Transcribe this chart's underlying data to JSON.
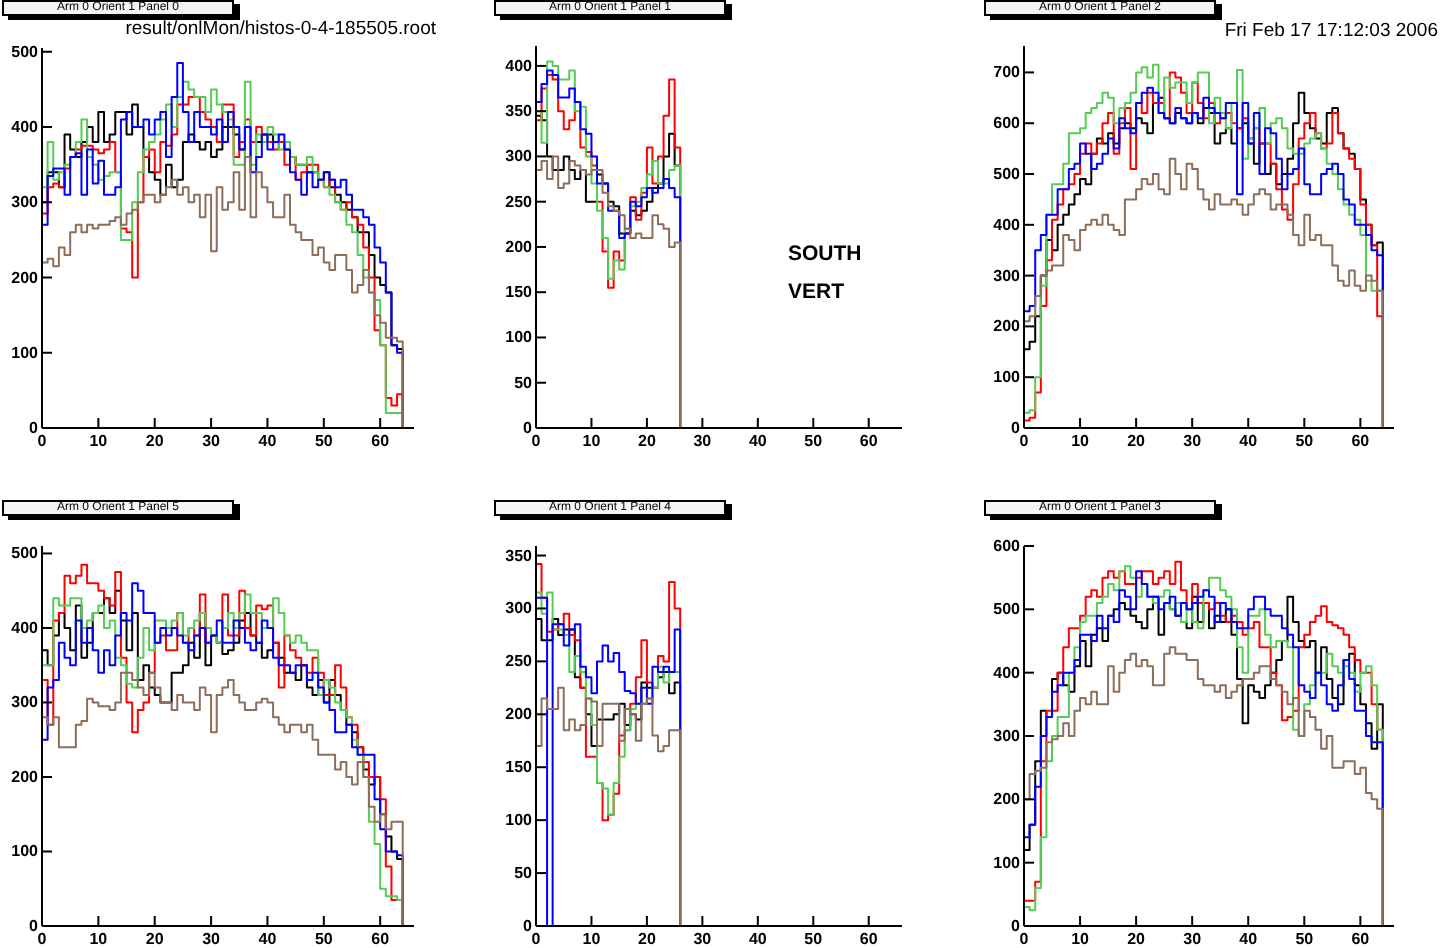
{
  "chart_data": [
    {
      "type": "histogram",
      "title": "Arm 0 Orient 1 Panel 0",
      "annotations": [
        "result/onlMon/histos-0-4-185505.root"
      ],
      "bins": [
        0,
        1,
        2,
        3,
        4,
        5,
        6,
        7,
        8,
        9,
        10,
        11,
        12,
        13,
        14,
        15,
        16,
        17,
        18,
        19,
        20,
        21,
        22,
        23,
        24,
        25,
        26,
        27,
        28,
        29,
        30,
        31,
        32,
        33,
        34,
        35,
        36,
        37,
        38,
        39,
        40,
        41,
        42,
        43,
        44,
        45,
        46,
        47,
        48,
        49,
        50,
        51,
        52,
        53,
        54,
        55,
        56,
        57,
        58,
        59,
        60,
        61,
        62,
        63,
        64
      ],
      "xlim": [
        0,
        66
      ],
      "xticks": [
        0,
        10,
        20,
        30,
        40,
        50,
        60
      ],
      "ylim": [
        0,
        505
      ],
      "yticks": [
        0,
        100,
        200,
        300,
        400,
        500
      ],
      "series": [
        {
          "color": "#000000",
          "values": [
            300,
            340,
            340,
            320,
            390,
            370,
            360,
            380,
            400,
            380,
            420,
            380,
            390,
            420,
            420,
            390,
            430,
            400,
            360,
            340,
            330,
            310,
            350,
            320,
            330,
            380,
            390,
            380,
            370,
            380,
            360,
            370,
            400,
            400,
            390,
            370,
            360,
            380,
            380,
            390,
            390,
            380,
            380,
            370,
            360,
            350,
            350,
            340,
            340,
            330,
            340,
            320,
            310,
            300,
            290,
            280,
            260,
            260,
            230,
            200,
            190,
            180,
            110,
            105
          ]
        },
        {
          "color": "#ff0000",
          "values": [
            285,
            320,
            325,
            320,
            345,
            360,
            370,
            375,
            375,
            370,
            365,
            370,
            380,
            340,
            265,
            260,
            200,
            300,
            360,
            370,
            340,
            380,
            375,
            390,
            430,
            430,
            440,
            440,
            420,
            410,
            400,
            380,
            430,
            430,
            360,
            380,
            410,
            380,
            400,
            390,
            380,
            370,
            380,
            350,
            360,
            330,
            340,
            350,
            350,
            330,
            320,
            330,
            300,
            290,
            300,
            280,
            270,
            240,
            200,
            130,
            110,
            40,
            30,
            45
          ]
        },
        {
          "color": "#55cc55",
          "values": [
            320,
            380,
            330,
            340,
            350,
            360,
            380,
            410,
            360,
            350,
            330,
            335,
            340,
            340,
            250,
            250,
            300,
            340,
            370,
            380,
            390,
            410,
            430,
            400,
            440,
            460,
            450,
            440,
            440,
            420,
            450,
            430,
            420,
            410,
            350,
            350,
            460,
            350,
            390,
            380,
            400,
            390,
            370,
            380,
            360,
            350,
            350,
            360,
            340,
            330,
            320,
            310,
            300,
            290,
            270,
            260,
            230,
            200,
            180,
            170,
            110,
            20,
            20,
            20
          ]
        },
        {
          "color": "#0000ff",
          "values": [
            270,
            335,
            345,
            345,
            310,
            360,
            365,
            310,
            370,
            325,
            355,
            310,
            310,
            320,
            410,
            420,
            400,
            400,
            410,
            390,
            410,
            420,
            360,
            440,
            485,
            420,
            380,
            420,
            400,
            400,
            390,
            410,
            380,
            420,
            400,
            370,
            400,
            340,
            360,
            390,
            370,
            380,
            390,
            370,
            340,
            330,
            310,
            340,
            320,
            330,
            340,
            330,
            320,
            330,
            310,
            290,
            290,
            280,
            270,
            240,
            220,
            180,
            110,
            100
          ]
        },
        {
          "color": "#8c6e5a",
          "values": [
            220,
            225,
            215,
            240,
            230,
            260,
            270,
            260,
            270,
            265,
            270,
            270,
            275,
            280,
            270,
            285,
            290,
            300,
            310,
            310,
            300,
            310,
            320,
            330,
            310,
            320,
            300,
            310,
            280,
            310,
            235,
            320,
            290,
            300,
            340,
            290,
            360,
            280,
            340,
            320,
            300,
            280,
            280,
            310,
            270,
            260,
            250,
            250,
            230,
            240,
            220,
            210,
            230,
            230,
            210,
            180,
            190,
            210,
            180,
            150,
            140,
            120,
            120,
            115
          ]
        }
      ]
    },
    {
      "type": "histogram",
      "title": "Arm 0 Orient 1 Panel 1",
      "annotations": [
        "SOUTH",
        "VERT"
      ],
      "bins": [
        0,
        1,
        2,
        3,
        4,
        5,
        6,
        7,
        8,
        9,
        10,
        11,
        12,
        13,
        14,
        15,
        16,
        17,
        18,
        19,
        20,
        21,
        22,
        23,
        24,
        25,
        26
      ],
      "xlim": [
        0,
        66
      ],
      "xticks": [
        0,
        10,
        20,
        30,
        40,
        50,
        60
      ],
      "ylim": [
        0,
        422
      ],
      "yticks": [
        0,
        50,
        100,
        150,
        200,
        250,
        300,
        350,
        400
      ],
      "series": [
        {
          "color": "#000000",
          "values": [
            345,
            340,
            300,
            285,
            285,
            300,
            285,
            275,
            285,
            250,
            250,
            280,
            270,
            250,
            245,
            215,
            215,
            240,
            235,
            240,
            250,
            265,
            270,
            300,
            325,
            290
          ]
        },
        {
          "color": "#ff0000",
          "values": [
            340,
            375,
            390,
            385,
            350,
            330,
            340,
            360,
            310,
            305,
            290,
            250,
            195,
            155,
            195,
            185,
            215,
            255,
            230,
            260,
            310,
            270,
            300,
            345,
            385,
            310
          ]
        },
        {
          "color": "#55cc55",
          "values": [
            350,
            315,
            405,
            400,
            385,
            385,
            395,
            350,
            355,
            300,
            270,
            240,
            210,
            165,
            185,
            175,
            220,
            245,
            250,
            265,
            280,
            295,
            270,
            270,
            285,
            290
          ]
        },
        {
          "color": "#0000ff",
          "values": [
            360,
            380,
            395,
            390,
            365,
            365,
            375,
            360,
            330,
            325,
            300,
            270,
            270,
            240,
            240,
            210,
            215,
            250,
            245,
            255,
            265,
            260,
            265,
            275,
            265,
            255
          ]
        },
        {
          "color": "#8c6e5a",
          "values": [
            285,
            295,
            275,
            300,
            265,
            270,
            295,
            290,
            285,
            280,
            285,
            285,
            260,
            245,
            240,
            235,
            220,
            210,
            215,
            210,
            210,
            235,
            225,
            220,
            200,
            205
          ]
        }
      ]
    },
    {
      "type": "histogram",
      "title": "Arm 0 Orient 1 Panel 2",
      "annotations": [
        "Fri Feb 17 17:12:03 2006"
      ],
      "bins": [
        0,
        1,
        2,
        3,
        4,
        5,
        6,
        7,
        8,
        9,
        10,
        11,
        12,
        13,
        14,
        15,
        16,
        17,
        18,
        19,
        20,
        21,
        22,
        23,
        24,
        25,
        26,
        27,
        28,
        29,
        30,
        31,
        32,
        33,
        34,
        35,
        36,
        37,
        38,
        39,
        40,
        41,
        42,
        43,
        44,
        45,
        46,
        47,
        48,
        49,
        50,
        51,
        52,
        53,
        54,
        55,
        56,
        57,
        58,
        59,
        60,
        61,
        62,
        63,
        64
      ],
      "xlim": [
        0,
        66
      ],
      "xticks": [
        0,
        10,
        20,
        30,
        40,
        50,
        60
      ],
      "ylim": [
        0,
        752
      ],
      "yticks": [
        0,
        100,
        200,
        300,
        400,
        500,
        600,
        700
      ],
      "series": [
        {
          "color": "#000000",
          "values": [
            155,
            170,
            220,
            300,
            370,
            350,
            400,
            420,
            440,
            460,
            490,
            480,
            540,
            570,
            560,
            580,
            560,
            590,
            600,
            590,
            610,
            600,
            580,
            640,
            650,
            610,
            600,
            620,
            610,
            600,
            620,
            600,
            630,
            620,
            560,
            580,
            590,
            560,
            590,
            600,
            560,
            520,
            560,
            500,
            520,
            480,
            500,
            530,
            600,
            660,
            620,
            590,
            570,
            560,
            620,
            630,
            580,
            550,
            540,
            510,
            450,
            400,
            360,
            365
          ]
        },
        {
          "color": "#ff0000",
          "values": [
            15,
            20,
            70,
            240,
            330,
            410,
            440,
            470,
            480,
            500,
            540,
            560,
            540,
            560,
            600,
            620,
            540,
            600,
            630,
            510,
            640,
            620,
            660,
            640,
            640,
            610,
            700,
            690,
            660,
            620,
            680,
            640,
            610,
            640,
            600,
            610,
            620,
            600,
            590,
            610,
            570,
            590,
            560,
            560,
            520,
            470,
            430,
            410,
            480,
            570,
            600,
            620,
            580,
            550,
            560,
            620,
            580,
            550,
            530,
            510,
            440,
            400,
            360,
            220
          ]
        },
        {
          "color": "#55cc55",
          "values": [
            30,
            35,
            100,
            280,
            420,
            480,
            480,
            520,
            580,
            580,
            590,
            620,
            630,
            640,
            660,
            650,
            600,
            630,
            640,
            660,
            700,
            710,
            690,
            715,
            620,
            690,
            670,
            680,
            680,
            640,
            680,
            700,
            700,
            600,
            650,
            620,
            590,
            640,
            705,
            530,
            570,
            590,
            630,
            560,
            600,
            610,
            590,
            550,
            540,
            540,
            560,
            570,
            580,
            550,
            520,
            500,
            470,
            440,
            420,
            410,
            380,
            290,
            270,
            270
          ]
        },
        {
          "color": "#0000ff",
          "values": [
            230,
            240,
            350,
            380,
            420,
            420,
            470,
            470,
            510,
            520,
            560,
            540,
            510,
            520,
            540,
            570,
            550,
            610,
            590,
            580,
            640,
            660,
            670,
            660,
            620,
            610,
            600,
            630,
            610,
            600,
            620,
            610,
            650,
            630,
            620,
            610,
            640,
            640,
            460,
            640,
            560,
            620,
            500,
            590,
            580,
            530,
            470,
            500,
            510,
            550,
            480,
            460,
            460,
            500,
            510,
            520,
            500,
            450,
            440,
            400,
            400,
            380,
            350,
            340
          ]
        },
        {
          "color": "#8c6e5a",
          "values": [
            210,
            220,
            260,
            300,
            310,
            320,
            320,
            380,
            370,
            350,
            390,
            400,
            410,
            400,
            420,
            400,
            390,
            380,
            450,
            450,
            470,
            490,
            480,
            500,
            470,
            460,
            530,
            500,
            470,
            520,
            510,
            470,
            450,
            430,
            460,
            440,
            440,
            450,
            440,
            420,
            440,
            460,
            470,
            460,
            430,
            440,
            440,
            420,
            380,
            360,
            420,
            370,
            380,
            360,
            360,
            320,
            290,
            280,
            310,
            280,
            270,
            300,
            290,
            270
          ]
        }
      ]
    },
    {
      "type": "histogram",
      "title": "Arm 0 Orient 1 Panel 5",
      "bins": [
        0,
        1,
        2,
        3,
        4,
        5,
        6,
        7,
        8,
        9,
        10,
        11,
        12,
        13,
        14,
        15,
        16,
        17,
        18,
        19,
        20,
        21,
        22,
        23,
        24,
        25,
        26,
        27,
        28,
        29,
        30,
        31,
        32,
        33,
        34,
        35,
        36,
        37,
        38,
        39,
        40,
        41,
        42,
        43,
        44,
        45,
        46,
        47,
        48,
        49,
        50,
        51,
        52,
        53,
        54,
        55,
        56,
        57,
        58,
        59,
        60,
        61,
        62,
        63,
        64
      ],
      "xlim": [
        0,
        66
      ],
      "xticks": [
        0,
        10,
        20,
        30,
        40,
        50,
        60
      ],
      "ylim": [
        0,
        510
      ],
      "yticks": [
        0,
        100,
        200,
        300,
        400,
        500
      ],
      "series": [
        {
          "color": "#000000",
          "values": [
            370,
            350,
            390,
            420,
            400,
            370,
            430,
            360,
            380,
            420,
            420,
            440,
            420,
            450,
            410,
            370,
            420,
            330,
            350,
            320,
            310,
            300,
            300,
            340,
            340,
            350,
            380,
            360,
            420,
            350,
            390,
            380,
            365,
            370,
            380,
            410,
            420,
            390,
            380,
            360,
            370,
            380,
            360,
            340,
            340,
            330,
            350,
            320,
            310,
            330,
            300,
            330,
            310,
            290,
            270,
            260,
            240,
            210,
            190,
            200,
            150,
            120,
            100,
            90
          ]
        },
        {
          "color": "#ff0000",
          "values": [
            330,
            270,
            410,
            420,
            470,
            460,
            470,
            485,
            460,
            460,
            450,
            440,
            430,
            475,
            360,
            300,
            260,
            290,
            300,
            340,
            380,
            390,
            370,
            370,
            420,
            380,
            400,
            390,
            445,
            380,
            390,
            380,
            445,
            390,
            390,
            450,
            400,
            390,
            430,
            425,
            430,
            380,
            320,
            390,
            370,
            360,
            350,
            340,
            360,
            340,
            310,
            310,
            350,
            320,
            280,
            270,
            240,
            220,
            200,
            200,
            170,
            80,
            35,
            35
          ]
        },
        {
          "color": "#55cc55",
          "values": [
            350,
            350,
            440,
            430,
            430,
            440,
            440,
            400,
            410,
            420,
            430,
            400,
            410,
            360,
            350,
            325,
            320,
            360,
            400,
            370,
            410,
            410,
            400,
            410,
            420,
            390,
            400,
            410,
            420,
            400,
            390,
            380,
            400,
            420,
            400,
            420,
            445,
            420,
            420,
            400,
            400,
            440,
            420,
            390,
            380,
            390,
            380,
            370,
            370,
            310,
            330,
            320,
            300,
            290,
            280,
            250,
            230,
            200,
            140,
            110,
            50,
            40,
            40,
            35
          ]
        },
        {
          "color": "#0000ff",
          "values": [
            250,
            320,
            330,
            380,
            360,
            350,
            410,
            380,
            400,
            370,
            340,
            370,
            350,
            390,
            420,
            410,
            460,
            450,
            420,
            420,
            380,
            400,
            390,
            400,
            390,
            380,
            370,
            390,
            400,
            380,
            390,
            410,
            380,
            380,
            410,
            400,
            380,
            370,
            380,
            410,
            400,
            360,
            350,
            350,
            340,
            350,
            350,
            330,
            340,
            320,
            300,
            290,
            260,
            260,
            270,
            240,
            230,
            230,
            230,
            170,
            130,
            100,
            100,
            95
          ]
        },
        {
          "color": "#8c6e5a",
          "values": [
            280,
            270,
            280,
            240,
            240,
            240,
            270,
            275,
            305,
            300,
            295,
            295,
            290,
            300,
            340,
            340,
            330,
            320,
            310,
            340,
            320,
            300,
            300,
            290,
            310,
            300,
            300,
            290,
            320,
            310,
            260,
            310,
            320,
            330,
            310,
            300,
            290,
            290,
            300,
            305,
            300,
            280,
            270,
            260,
            270,
            270,
            260,
            270,
            250,
            230,
            230,
            230,
            210,
            220,
            200,
            190,
            220,
            200,
            160,
            140,
            150,
            130,
            140,
            140
          ]
        }
      ]
    },
    {
      "type": "histogram",
      "title": "Arm 0 Orient 1 Panel 4",
      "bins": [
        0,
        1,
        2,
        3,
        4,
        5,
        6,
        7,
        8,
        9,
        10,
        11,
        12,
        13,
        14,
        15,
        16,
        17,
        18,
        19,
        20,
        21,
        22,
        23,
        24,
        25,
        26
      ],
      "xlim": [
        0,
        66
      ],
      "xticks": [
        0,
        10,
        20,
        30,
        40,
        50,
        60
      ],
      "ylim": [
        0,
        359
      ],
      "yticks": [
        0,
        50,
        100,
        150,
        200,
        250,
        300,
        350
      ],
      "series": [
        {
          "color": "#000000",
          "values": [
            290,
            270,
            270,
            290,
            275,
            280,
            280,
            235,
            225,
            200,
            170,
            195,
            195,
            195,
            200,
            210,
            190,
            200,
            195,
            230,
            225,
            225,
            235,
            240,
            220,
            230
          ]
        },
        {
          "color": "#ff0000",
          "values": [
            342,
            310,
            278,
            280,
            285,
            295,
            275,
            270,
            225,
            160,
            160,
            135,
            100,
            105,
            125,
            180,
            185,
            210,
            235,
            270,
            230,
            225,
            255,
            250,
            325,
            300
          ]
        },
        {
          "color": "#55cc55",
          "values": [
            315,
            295,
            315,
            280,
            280,
            275,
            240,
            255,
            240,
            215,
            190,
            135,
            130,
            105,
            135,
            160,
            185,
            205,
            210,
            210,
            215,
            225,
            245,
            230,
            240,
            240
          ]
        },
        {
          "color": "#0000ff",
          "values": [
            310,
            310,
            0,
            285,
            285,
            265,
            280,
            285,
            245,
            235,
            220,
            250,
            265,
            250,
            258,
            240,
            222,
            220,
            210,
            225,
            210,
            245,
            240,
            245,
            240,
            280
          ]
        },
        {
          "color": "#8c6e5a",
          "values": [
            170,
            215,
            205,
            205,
            225,
            185,
            195,
            185,
            190,
            215,
            212,
            170,
            210,
            210,
            210,
            175,
            205,
            200,
            175,
            210,
            215,
            180,
            165,
            170,
            185,
            185
          ]
        }
      ]
    },
    {
      "type": "histogram",
      "title": "Arm 0 Orient 1 Panel 3",
      "bins": [
        0,
        1,
        2,
        3,
        4,
        5,
        6,
        7,
        8,
        9,
        10,
        11,
        12,
        13,
        14,
        15,
        16,
        17,
        18,
        19,
        20,
        21,
        22,
        23,
        24,
        25,
        26,
        27,
        28,
        29,
        30,
        31,
        32,
        33,
        34,
        35,
        36,
        37,
        38,
        39,
        40,
        41,
        42,
        43,
        44,
        45,
        46,
        47,
        48,
        49,
        50,
        51,
        52,
        53,
        54,
        55,
        56,
        57,
        58,
        59,
        60,
        61,
        62,
        63,
        64
      ],
      "xlim": [
        0,
        66
      ],
      "xticks": [
        0,
        10,
        20,
        30,
        40,
        50,
        60
      ],
      "ylim": [
        0,
        600
      ],
      "yticks": [
        0,
        100,
        200,
        300,
        400,
        500,
        600
      ],
      "series": [
        {
          "color": "#000000",
          "values": [
            120,
            160,
            260,
            340,
            330,
            390,
            400,
            380,
            370,
            410,
            450,
            410,
            460,
            470,
            450,
            490,
            500,
            510,
            500,
            490,
            480,
            470,
            500,
            520,
            460,
            510,
            500,
            490,
            480,
            470,
            520,
            480,
            510,
            470,
            490,
            480,
            500,
            460,
            390,
            320,
            380,
            370,
            360,
            380,
            400,
            420,
            450,
            520,
            480,
            450,
            440,
            450,
            400,
            440,
            390,
            360,
            350,
            420,
            430,
            380,
            350,
            320,
            280,
            350
          ]
        },
        {
          "color": "#ff0000",
          "values": [
            40,
            40,
            70,
            260,
            340,
            340,
            400,
            440,
            470,
            470,
            490,
            520,
            530,
            520,
            550,
            560,
            550,
            560,
            540,
            540,
            550,
            560,
            560,
            540,
            550,
            560,
            540,
            575,
            530,
            500,
            540,
            510,
            510,
            500,
            510,
            490,
            480,
            490,
            480,
            460,
            470,
            480,
            440,
            440,
            400,
            380,
            325,
            330,
            340,
            440,
            460,
            480,
            490,
            505,
            480,
            475,
            470,
            460,
            440,
            420,
            400,
            400,
            350,
            310
          ]
        },
        {
          "color": "#55cc55",
          "values": [
            30,
            25,
            60,
            140,
            260,
            300,
            330,
            330,
            400,
            440,
            480,
            490,
            490,
            510,
            520,
            540,
            530,
            560,
            568,
            550,
            520,
            540,
            520,
            510,
            520,
            530,
            500,
            510,
            480,
            500,
            480,
            470,
            530,
            550,
            550,
            530,
            520,
            500,
            440,
            400,
            490,
            490,
            500,
            460,
            440,
            450,
            450,
            440,
            310,
            300,
            350,
            380,
            400,
            400,
            430,
            410,
            400,
            410,
            400,
            370,
            400,
            410,
            380,
            310
          ]
        },
        {
          "color": "#0000ff",
          "values": [
            140,
            160,
            220,
            300,
            330,
            370,
            380,
            400,
            400,
            420,
            460,
            460,
            450,
            490,
            470,
            490,
            480,
            530,
            520,
            500,
            560,
            540,
            520,
            520,
            500,
            510,
            520,
            490,
            510,
            500,
            510,
            520,
            530,
            520,
            480,
            510,
            500,
            480,
            470,
            470,
            500,
            520,
            520,
            500,
            490,
            490,
            470,
            460,
            440,
            380,
            370,
            360,
            400,
            380,
            350,
            340,
            380,
            420,
            390,
            340,
            340,
            300,
            290,
            290
          ]
        },
        {
          "color": "#8c6e5a",
          "values": [
            200,
            240,
            245,
            250,
            290,
            295,
            300,
            320,
            300,
            340,
            360,
            350,
            370,
            350,
            350,
            410,
            370,
            400,
            420,
            430,
            410,
            420,
            410,
            380,
            380,
            430,
            440,
            430,
            430,
            420,
            420,
            390,
            380,
            380,
            370,
            380,
            360,
            370,
            380,
            390,
            390,
            400,
            410,
            410,
            390,
            380,
            370,
            350,
            360,
            300,
            340,
            330,
            310,
            280,
            300,
            250,
            250,
            260,
            260,
            240,
            250,
            210,
            200,
            185
          ]
        }
      ]
    }
  ]
}
